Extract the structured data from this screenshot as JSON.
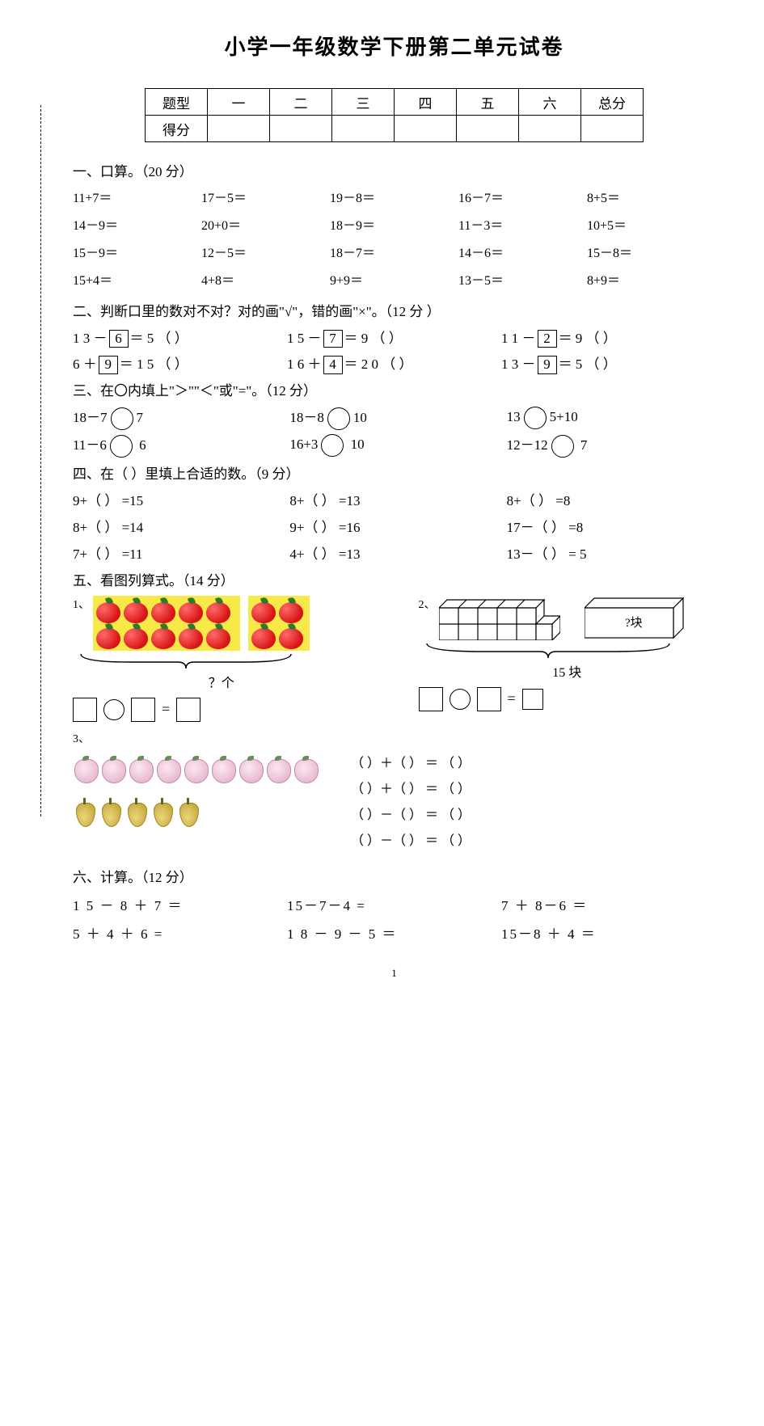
{
  "title": "小学一年级数学下册第二单元试卷",
  "score_table": {
    "headers": [
      "题型",
      "一",
      "二",
      "三",
      "四",
      "五",
      "六",
      "总分"
    ],
    "row2_label": "得分"
  },
  "s1": {
    "heading": "一、口算。（20 分）",
    "items": [
      "11+7＝",
      "17－5＝",
      "19－8＝",
      "16－7＝",
      "8+5＝",
      "14－9＝",
      "20+0＝",
      "18－9＝",
      "11－3＝",
      "10+5＝",
      "15－9＝",
      "12－5＝",
      "18－7＝",
      "14－6＝",
      "15－8＝",
      "15+4＝",
      "4+8＝",
      "9+9＝",
      "13－5＝",
      "8+9＝"
    ]
  },
  "s2": {
    "heading": "二、判断口里的数对不对？对的画\"√\"，错的画\"×\"。（12 分 ）",
    "rows": [
      [
        {
          "pre": "1 3 －",
          "box": "6",
          "post": "＝ 5 （   ）"
        },
        {
          "pre": "1 5 －",
          "box": "7",
          "post": "＝ 9 （   ）"
        },
        {
          "pre": "1 1 －",
          "box": "2",
          "post": "＝ 9 （   ）"
        }
      ],
      [
        {
          "pre": "6 ＋",
          "box": "9",
          "post": "＝ 1 5 （   ）"
        },
        {
          "pre": "1 6 ＋",
          "box": "4",
          "post": "＝ 2 0 （   ）"
        },
        {
          "pre": "1 3 －",
          "box": "9",
          "post": "＝ 5 （   ）"
        }
      ]
    ]
  },
  "s3": {
    "heading": "三、在〇内填上\"＞\"\"＜\"或\"=\"。（12 分）",
    "rows": [
      [
        {
          "l": "18－7",
          "r": "7"
        },
        {
          "l": "18－8",
          "r": "10"
        },
        {
          "l": "13",
          "r": "5+10"
        }
      ],
      [
        {
          "l": "11－6",
          "r": " 6"
        },
        {
          "l": "16+3",
          "r": " 10"
        },
        {
          "l": "12－12",
          "r": " 7"
        }
      ]
    ]
  },
  "s4": {
    "heading": "四、在（    ）里填上合适的数。（9 分）",
    "rows": [
      [
        "9+（      ） =15",
        "8+（      ） =13",
        "8+（      ） =8"
      ],
      [
        "8+（      ） =14",
        "9+（      ） =16",
        "17－（      ） =8"
      ],
      [
        "7+（      ） =11",
        "4+（      ） =13",
        "13－（    ） =  5"
      ]
    ]
  },
  "s5": {
    "heading": "五、看图列算式。（14 分）",
    "q1_label": "1、",
    "q1_count_label": "？个",
    "q2_label": "2、",
    "q2_box_label": "?块",
    "q2_total_label": "15 块",
    "q3_label": "3、",
    "q3_lines": [
      "（       ）＋（       ） ＝ （       ）",
      "（       ）＋（       ） ＝ （       ）",
      "（       ）－（       ） ＝ （       ）",
      "（       ）－（       ） ＝ （       ）"
    ]
  },
  "s6": {
    "heading": "六、计算。（12 分）",
    "rows": [
      [
        "1 5 － 8 ＋ 7 ＝",
        "15－7－4  =",
        "7 ＋ 8－6 ＝"
      ],
      [
        "5 ＋ 4 ＋ 6  =",
        "1 8 － 9 － 5 ＝",
        "15－8 ＋ 4 ＝"
      ]
    ]
  },
  "page_number": "1",
  "colors": {
    "text": "#000000",
    "apple_bg": "#f7e948",
    "apple_fill": "#d71414",
    "peach_fill": "#e8b8d0",
    "pear_fill": "#c4a838"
  }
}
